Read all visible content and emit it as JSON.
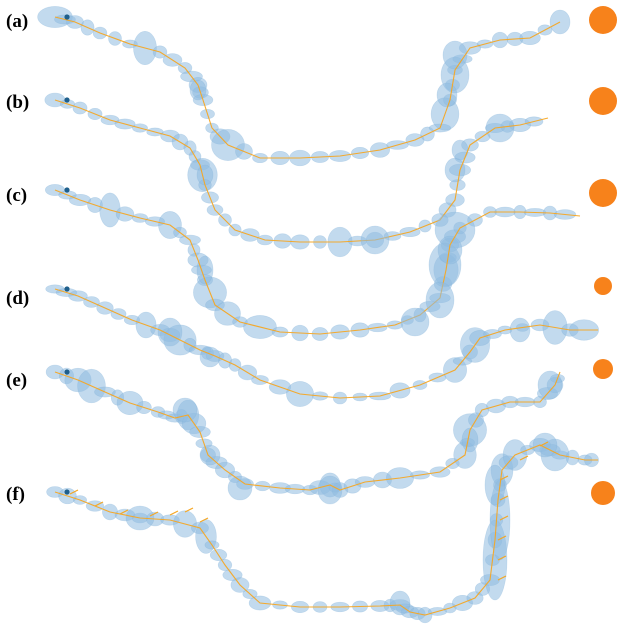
{
  "figure": {
    "panels": [
      {
        "label": "(a)"
      },
      {
        "label": "(b)"
      },
      {
        "label": "(c)"
      },
      {
        "label": "(d)"
      },
      {
        "label": "(e)"
      },
      {
        "label": "(f)"
      }
    ],
    "colors": {
      "uncertainty_ellipse": "#8fbce0",
      "trajectory": "#f5a623",
      "goal": "#f7821b",
      "start": "#1f5f8b"
    }
  }
}
